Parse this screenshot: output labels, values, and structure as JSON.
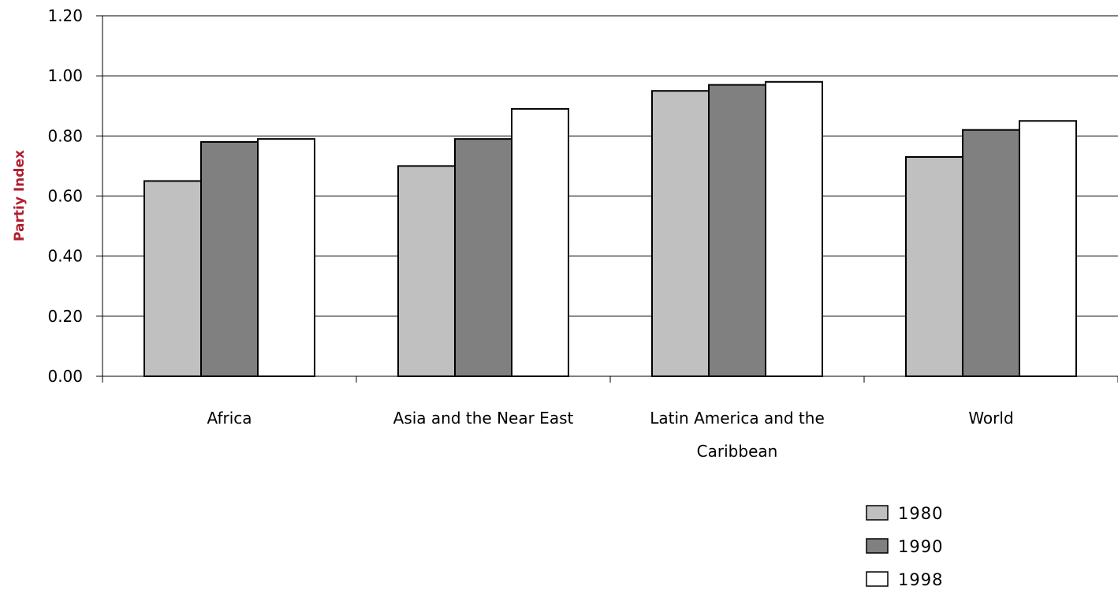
{
  "chart_data": {
    "type": "bar",
    "categories": [
      "Africa",
      "Asia and the Near East",
      "Latin America and the Caribbean",
      "World"
    ],
    "category_label_lines": [
      [
        "Africa"
      ],
      [
        "Asia and the Near East"
      ],
      [
        "Latin America and the",
        "Caribbean"
      ],
      [
        "World"
      ]
    ],
    "series": [
      {
        "name": "1980",
        "values": [
          0.65,
          0.7,
          0.95,
          0.73
        ],
        "color": "#c0c0c0"
      },
      {
        "name": "1990",
        "values": [
          0.78,
          0.79,
          0.97,
          0.82
        ],
        "color": "#808080"
      },
      {
        "name": "1998",
        "values": [
          0.79,
          0.89,
          0.98,
          0.85
        ],
        "color": "#ffffff"
      }
    ],
    "title": "",
    "xlabel": "",
    "ylabel": "Partiy Index",
    "ylabel_color": "#b11e2e",
    "ylim": [
      0,
      1.2
    ],
    "yticks": [
      "0.00",
      "0.20",
      "0.40",
      "0.60",
      "0.80",
      "1.00",
      "1.20"
    ],
    "ytick_values": [
      0,
      0.2,
      0.4,
      0.6,
      0.8,
      1.0,
      1.2
    ],
    "grid": true,
    "legend_position": "bottom-right"
  }
}
